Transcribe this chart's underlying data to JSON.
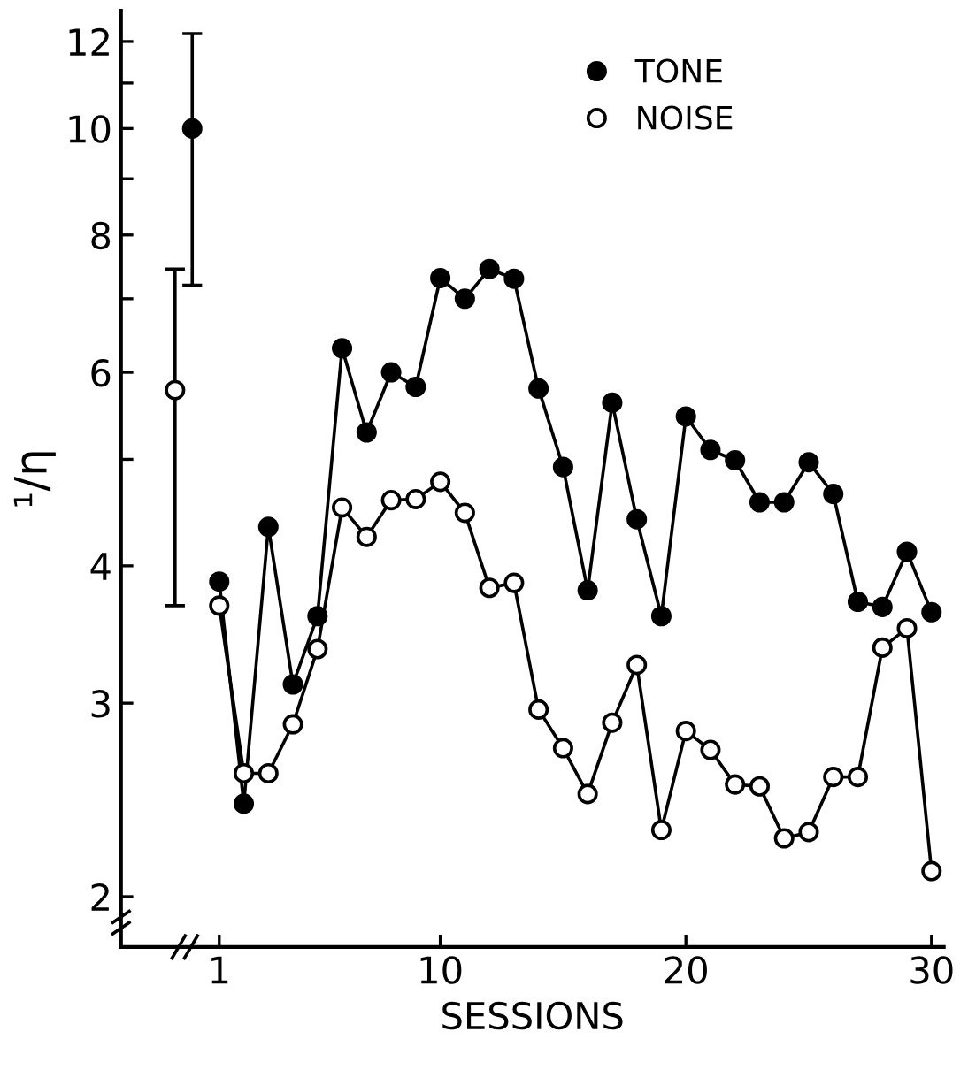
{
  "chart_data": {
    "type": "line",
    "xlabel": "SESSIONS",
    "ylabel": "¹/η",
    "log": "y",
    "marker": "circle",
    "line_style": "solid",
    "legend": "top right",
    "grid": false,
    "xlim": [
      -3,
      30.5
    ],
    "xticks": [
      1,
      10,
      20,
      30
    ],
    "ylim": [
      1.8,
      12.8
    ],
    "yticks": [
      2,
      3,
      4,
      {
        "value": 5,
        "label": null
      },
      6,
      {
        "value": 7,
        "label": null
      },
      8,
      {
        "value": 9,
        "label": null
      },
      10,
      {
        "value": 11,
        "label": null
      },
      12
    ],
    "series": [
      {
        "name": "TONE",
        "color": "#000000",
        "x": [
          1,
          2,
          3,
          4,
          5,
          6,
          7,
          8,
          9,
          10,
          11,
          12,
          13,
          14,
          15,
          16,
          17,
          18,
          19,
          20,
          21,
          22,
          23,
          24,
          25,
          26,
          27,
          28,
          29,
          30
        ],
        "values": [
          3.87,
          2.43,
          4.34,
          3.12,
          3.6,
          6.31,
          5.29,
          6.0,
          5.82,
          7.31,
          7.0,
          7.45,
          7.3,
          5.8,
          4.92,
          3.8,
          5.63,
          4.41,
          3.6,
          5.47,
          5.1,
          4.99,
          4.57,
          4.57,
          4.97,
          4.65,
          3.71,
          3.67,
          4.12,
          3.63
        ]
      },
      {
        "name": "NOISE",
        "color": "#ffffff",
        "x": [
          1,
          2,
          3,
          4,
          5,
          6,
          7,
          8,
          9,
          10,
          11,
          12,
          13,
          14,
          15,
          16,
          17,
          18,
          19,
          20,
          21,
          22,
          23,
          24,
          25,
          26,
          27,
          28,
          29,
          30
        ],
        "values": [
          3.68,
          2.59,
          2.59,
          2.87,
          3.36,
          4.52,
          4.25,
          4.59,
          4.6,
          4.77,
          4.47,
          3.82,
          3.86,
          2.96,
          2.73,
          2.48,
          2.88,
          3.25,
          2.3,
          2.83,
          2.72,
          2.53,
          2.52,
          2.26,
          2.29,
          2.57,
          2.57,
          3.37,
          3.51,
          2.11
        ]
      },
      {
        "type": "scatter",
        "color": "#000000",
        "x": [
          -0.1
        ],
        "values": [
          10.0
        ],
        "errors": [
          [
            7.2,
            12.2
          ]
        ]
      },
      {
        "type": "scatter",
        "color": "#ffffff",
        "x": [
          -0.8
        ],
        "values": [
          5.78
        ],
        "errors": [
          [
            3.68,
            7.45
          ]
        ]
      }
    ]
  }
}
